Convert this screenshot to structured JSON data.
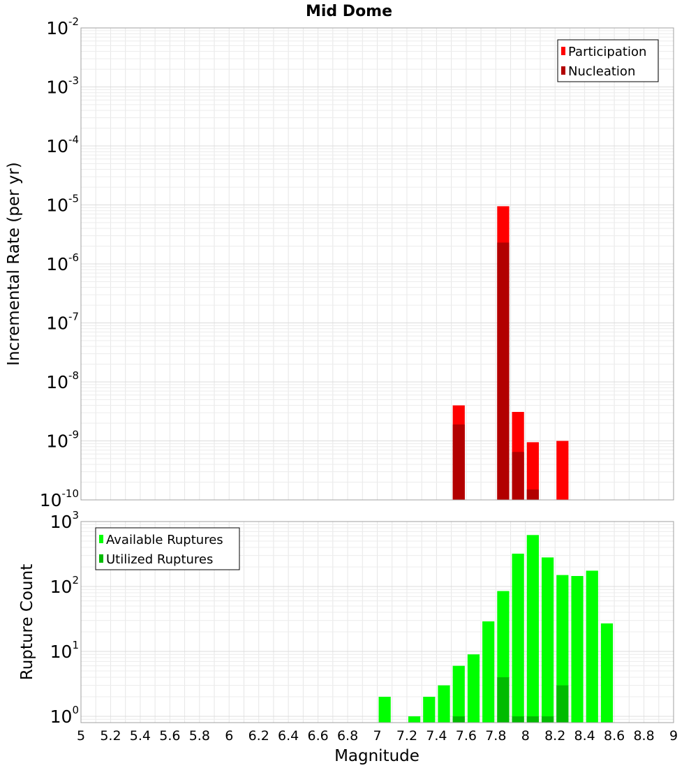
{
  "chart_data": [
    {
      "type": "bar",
      "title": "Mid Dome",
      "ylabel": "Incremental Rate (per yr)",
      "xlim": [
        5,
        9
      ],
      "ylim": [
        1e-10,
        0.01
      ],
      "yscale": "log",
      "ytick_exponents": [
        "-2",
        "-3",
        "-4",
        "-5",
        "-6",
        "-7",
        "-8",
        "-9",
        "-10"
      ],
      "ytick_base": "10",
      "grid": true,
      "legend": "top-right",
      "bin_width": 0.1,
      "series": [
        {
          "name": "Participation",
          "color": "#ff0000",
          "x": [
            7.55,
            7.85,
            7.95,
            8.05,
            8.25
          ],
          "values": [
            4e-09,
            9.5e-06,
            3.1e-09,
            9.5e-10,
            1e-09
          ]
        },
        {
          "name": "Nucleation",
          "color": "#b20000",
          "x": [
            7.55,
            7.85,
            7.95,
            8.05
          ],
          "values": [
            1.9e-09,
            2.3e-06,
            6.5e-10,
            1.5e-10
          ]
        }
      ]
    },
    {
      "type": "bar",
      "ylabel": "Rupture Count",
      "xlabel": "Magnitude",
      "xlim": [
        5,
        9
      ],
      "ylim": [
        0.8,
        1000
      ],
      "yscale": "log",
      "ytick_exponents": [
        "3",
        "2",
        "1",
        "0"
      ],
      "ytick_base": "10",
      "xticks": [
        "5",
        "5.2",
        "5.4",
        "5.6",
        "5.8",
        "6",
        "6.2",
        "6.4",
        "6.6",
        "6.8",
        "7",
        "7.2",
        "7.4",
        "7.6",
        "7.8",
        "8",
        "8.2",
        "8.4",
        "8.6",
        "8.8",
        "9"
      ],
      "grid": true,
      "legend": "top-left",
      "bin_width": 0.1,
      "series": [
        {
          "name": "Available Ruptures",
          "color": "#00ff00",
          "x": [
            7.05,
            7.25,
            7.35,
            7.45,
            7.55,
            7.65,
            7.75,
            7.85,
            7.95,
            8.05,
            8.15,
            8.25,
            8.35,
            8.45,
            8.55
          ],
          "values": [
            2,
            1,
            2,
            3,
            6,
            9,
            29,
            85,
            320,
            620,
            280,
            150,
            145,
            175,
            27
          ]
        },
        {
          "name": "Utilized Ruptures",
          "color": "#00bb00",
          "x": [
            7.55,
            7.85,
            7.95,
            8.05,
            8.15,
            8.25
          ],
          "values": [
            1,
            4,
            1,
            1,
            1,
            3
          ]
        }
      ]
    }
  ]
}
